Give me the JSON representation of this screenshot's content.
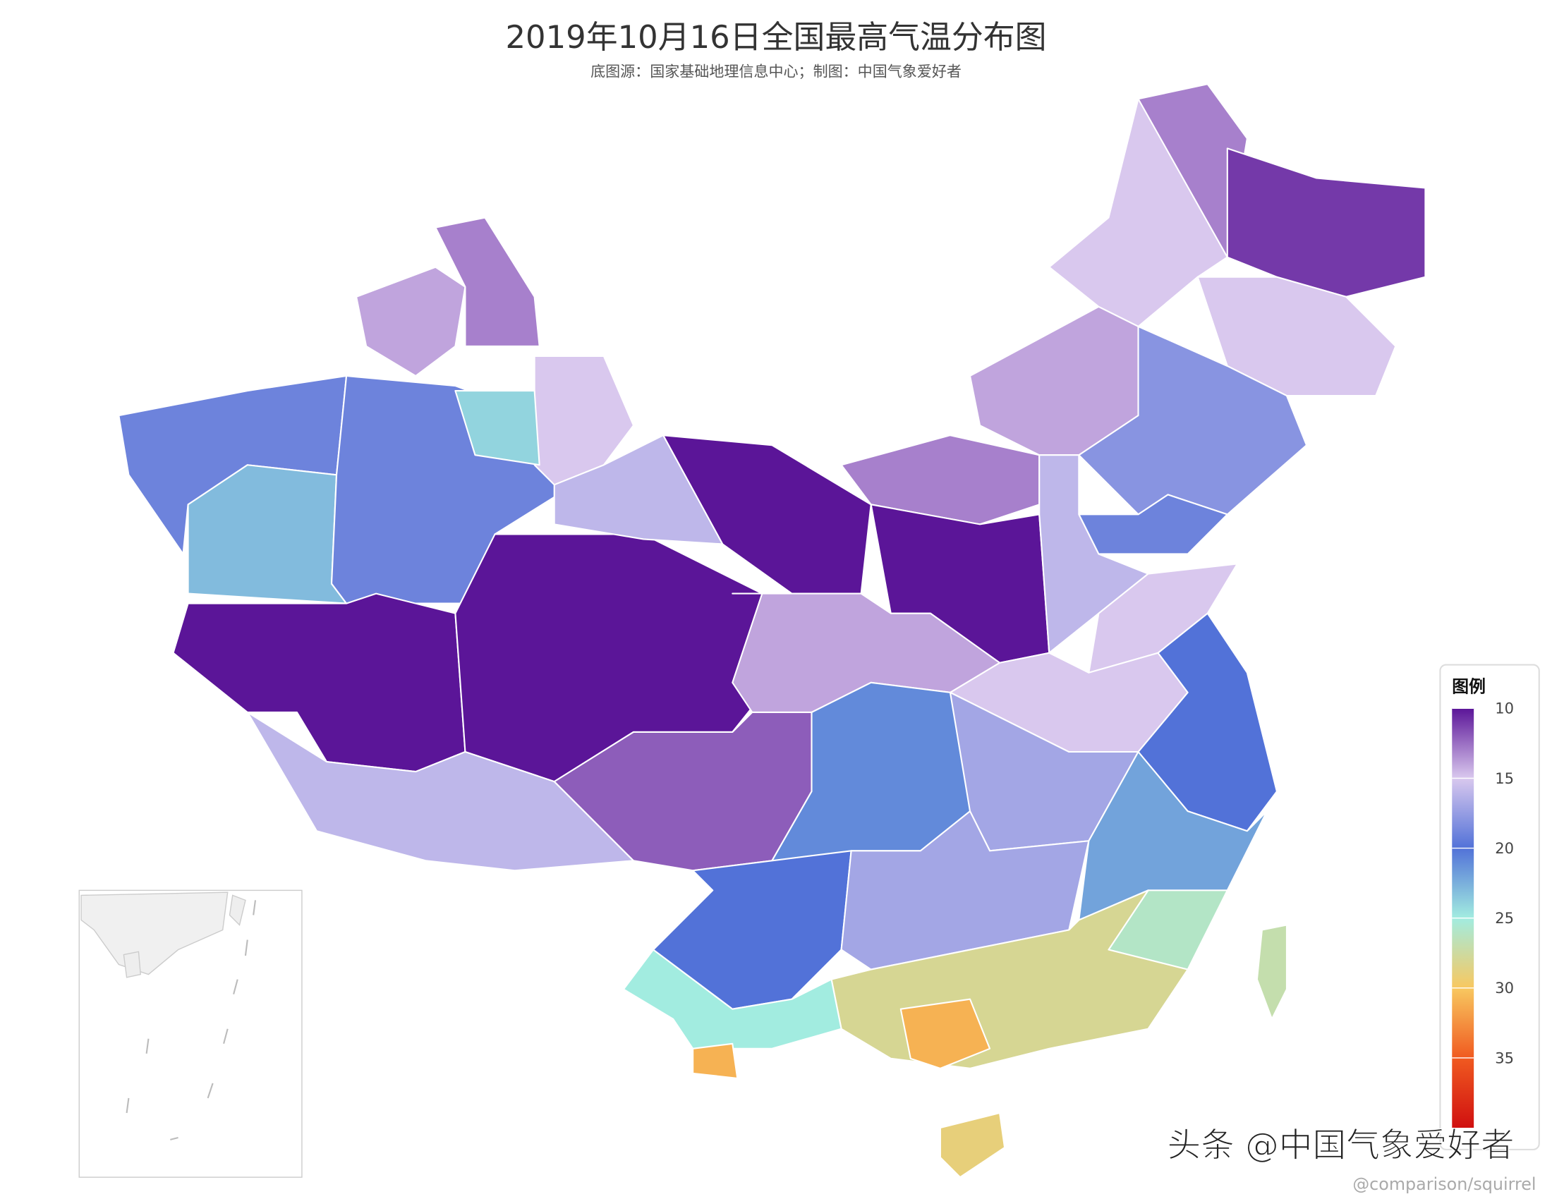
{
  "chart_data": {
    "type": "map",
    "title": "2019年10月16日全国最高气温分布图",
    "subtitle": "底图源：国家基础地理信息中心；制图：中国气象爱好者",
    "legend_title": "图例",
    "values": [
      19,
      23,
      19,
      14,
      13,
      15,
      24,
      10,
      10,
      16,
      10,
      16,
      13,
      10,
      14,
      15,
      13,
      11,
      15,
      18,
      19,
      16,
      15,
      14,
      12,
      15,
      20,
      21,
      17,
      20,
      17,
      22,
      26,
      28,
      31,
      25,
      31,
      29,
      27
    ],
    "colorscale": [
      {
        "value": 10,
        "color": "#5b1598"
      },
      {
        "value": 15,
        "color": "#d9c8ee"
      },
      {
        "value": 20,
        "color": "#5272d8"
      },
      {
        "value": 25,
        "color": "#a2ece0"
      },
      {
        "value": 30,
        "color": "#f8c860"
      },
      {
        "value": 35,
        "color": "#f05a20"
      },
      {
        "value": 40,
        "color": "#d01010"
      }
    ],
    "lim": [
      10,
      40
    ],
    "ticks": [
      10,
      15,
      20,
      25,
      30,
      35
    ],
    "watermark": "头条 @中国气象爱好者",
    "credit": "@comparison/squirrel"
  }
}
